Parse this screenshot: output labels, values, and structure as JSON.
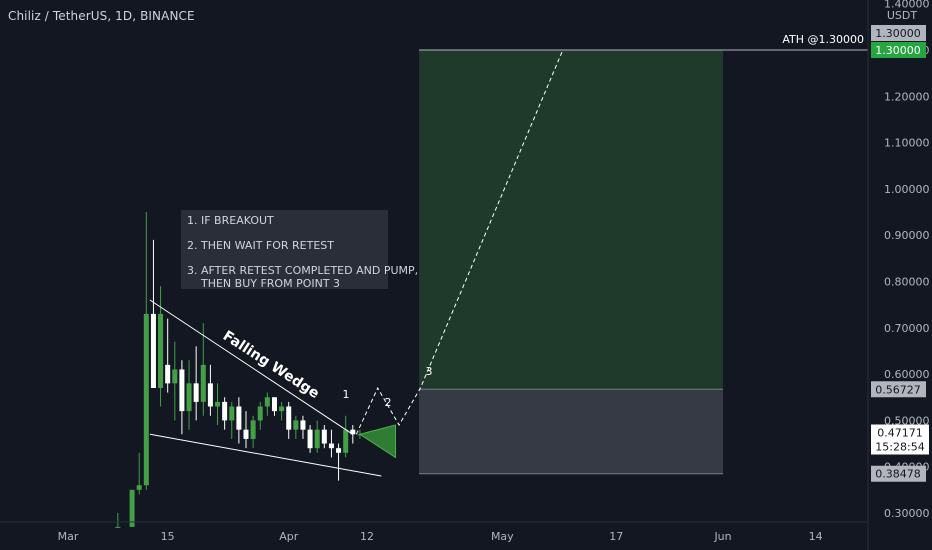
{
  "header": {
    "title": "Chiliz / TetherUS, 1D, BINANCE"
  },
  "currency": "USDT",
  "annotations": {
    "ath_label": "ATH @1.30000",
    "wedge_label": "Falling Wedge",
    "point1": "1",
    "point2": "2",
    "point3": "3",
    "notes": [
      "1. IF BREAKOUT",
      "2. THEN WAIT FOR RETEST",
      "3. AFTER RETEST COMPLETED AND PUMP,\n    THEN BUY FROM POINT 3"
    ]
  },
  "price_tags": {
    "ath_top": "1.30000",
    "ath": "1.30000",
    "entry": "0.56727",
    "current": "0.47171",
    "countdown": "15:28:54",
    "stop": "0.38478"
  },
  "colors": {
    "background": "#131722",
    "bull": "#26a69a",
    "bull_candle": "#43a047",
    "bear_candle": "#ffffff",
    "target_zone": "#1f3a2a",
    "stop_zone": "#363a45",
    "ath_tag": "#26a641"
  },
  "chart_data": {
    "type": "candlestick",
    "y_scale": "linear",
    "ylim": [
      0.27,
      1.41
    ],
    "yticks": [
      0.3,
      0.4,
      0.5,
      0.6,
      0.7,
      0.8,
      0.9,
      1.0,
      1.1,
      1.2,
      1.3,
      1.4
    ],
    "ytick_labels": [
      "0.30000",
      "0.40000",
      "0.50000",
      "0.60000",
      "0.70000",
      "0.80000",
      "0.90000",
      "1.00000",
      "1.10000",
      "1.20000",
      "1.30000",
      "1.40000"
    ],
    "x_axis_labels": [
      {
        "label": "Mar",
        "day": 0
      },
      {
        "label": "15",
        "day": 14
      },
      {
        "label": "Apr",
        "day": 31
      },
      {
        "label": "12",
        "day": 42
      },
      {
        "label": "May",
        "day": 61
      },
      {
        "label": "17",
        "day": 77
      },
      {
        "label": "Jun",
        "day": 92
      },
      {
        "label": "14",
        "day": 105
      }
    ],
    "candles": [
      {
        "day": 7,
        "open": 0.27,
        "high": 0.3,
        "low": 0.27,
        "close": 0.27
      },
      {
        "day": 9,
        "open": 0.27,
        "high": 0.35,
        "low": 0.27,
        "close": 0.35
      },
      {
        "day": 10,
        "open": 0.35,
        "high": 0.43,
        "low": 0.34,
        "close": 0.36
      },
      {
        "day": 11,
        "open": 0.36,
        "high": 0.95,
        "low": 0.35,
        "close": 0.73
      },
      {
        "day": 12,
        "open": 0.73,
        "high": 0.89,
        "low": 0.57,
        "close": 0.57
      },
      {
        "day": 13,
        "open": 0.57,
        "high": 0.79,
        "low": 0.53,
        "close": 0.73
      },
      {
        "day": 14,
        "open": 0.62,
        "high": 0.72,
        "low": 0.56,
        "close": 0.58
      },
      {
        "day": 15,
        "open": 0.58,
        "high": 0.67,
        "low": 0.5,
        "close": 0.61
      },
      {
        "day": 16,
        "open": 0.61,
        "high": 0.63,
        "low": 0.47,
        "close": 0.52
      },
      {
        "day": 17,
        "open": 0.52,
        "high": 0.63,
        "low": 0.48,
        "close": 0.58
      },
      {
        "day": 18,
        "open": 0.58,
        "high": 0.66,
        "low": 0.5,
        "close": 0.54
      },
      {
        "day": 19,
        "open": 0.54,
        "high": 0.71,
        "low": 0.51,
        "close": 0.62
      },
      {
        "day": 20,
        "open": 0.58,
        "high": 0.62,
        "low": 0.51,
        "close": 0.53
      },
      {
        "day": 21,
        "open": 0.53,
        "high": 0.58,
        "low": 0.49,
        "close": 0.54
      },
      {
        "day": 22,
        "open": 0.54,
        "high": 0.55,
        "low": 0.48,
        "close": 0.5
      },
      {
        "day": 23,
        "open": 0.5,
        "high": 0.54,
        "low": 0.46,
        "close": 0.53
      },
      {
        "day": 24,
        "open": 0.53,
        "high": 0.55,
        "low": 0.45,
        "close": 0.48
      },
      {
        "day": 25,
        "open": 0.48,
        "high": 0.52,
        "low": 0.44,
        "close": 0.46
      },
      {
        "day": 26,
        "open": 0.46,
        "high": 0.51,
        "low": 0.44,
        "close": 0.5
      },
      {
        "day": 27,
        "open": 0.5,
        "high": 0.54,
        "low": 0.48,
        "close": 0.53
      },
      {
        "day": 28,
        "open": 0.53,
        "high": 0.56,
        "low": 0.51,
        "close": 0.55
      },
      {
        "day": 29,
        "open": 0.55,
        "high": 0.55,
        "low": 0.51,
        "close": 0.52
      },
      {
        "day": 30,
        "open": 0.52,
        "high": 0.54,
        "low": 0.5,
        "close": 0.53
      },
      {
        "day": 31,
        "open": 0.53,
        "high": 0.54,
        "low": 0.46,
        "close": 0.48
      },
      {
        "day": 32,
        "open": 0.48,
        "high": 0.51,
        "low": 0.46,
        "close": 0.5
      },
      {
        "day": 33,
        "open": 0.5,
        "high": 0.51,
        "low": 0.46,
        "close": 0.48
      },
      {
        "day": 34,
        "open": 0.48,
        "high": 0.49,
        "low": 0.43,
        "close": 0.44
      },
      {
        "day": 35,
        "open": 0.44,
        "high": 0.5,
        "low": 0.43,
        "close": 0.48
      },
      {
        "day": 36,
        "open": 0.48,
        "high": 0.49,
        "low": 0.44,
        "close": 0.45
      },
      {
        "day": 37,
        "open": 0.45,
        "high": 0.48,
        "low": 0.42,
        "close": 0.44
      },
      {
        "day": 38,
        "open": 0.44,
        "high": 0.45,
        "low": 0.37,
        "close": 0.43
      },
      {
        "day": 39,
        "open": 0.43,
        "high": 0.51,
        "low": 0.42,
        "close": 0.48
      },
      {
        "day": 40,
        "open": 0.48,
        "high": 0.49,
        "low": 0.45,
        "close": 0.47
      },
      {
        "day": 41,
        "open": 0.47,
        "high": 0.48,
        "low": 0.46,
        "close": 0.47
      }
    ],
    "wedge": {
      "label": "Falling Wedge",
      "upper": [
        [
          11.5,
          0.76
        ],
        [
          40,
          0.47
        ]
      ],
      "lower": [
        [
          11.5,
          0.47
        ],
        [
          44,
          0.38
        ]
      ]
    },
    "projection_path": [
      [
        40.5,
        0.47
      ],
      [
        43.5,
        0.57
      ],
      [
        46.5,
        0.49
      ],
      [
        49.5,
        0.57
      ],
      [
        69.5,
        1.3
      ]
    ],
    "position": {
      "start_day": 49.3,
      "end_day": 92,
      "entry": 0.56727,
      "target": 1.3,
      "stop": 0.38478
    },
    "breakout_triangle": [
      [
        41,
        0.47
      ],
      [
        46,
        0.49
      ],
      [
        46,
        0.42
      ]
    ],
    "current_price": 0.47171
  }
}
